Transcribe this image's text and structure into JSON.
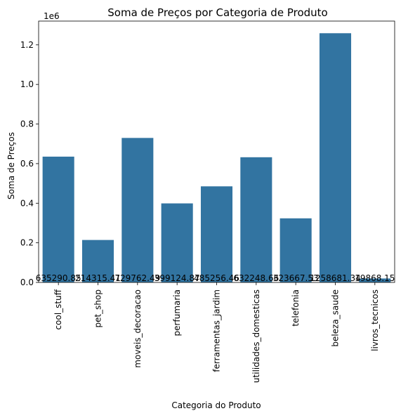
{
  "chart_data": {
    "type": "bar",
    "title": "Soma de Preços por Categoria de Produto",
    "xlabel": "Categoria do Produto",
    "ylabel": "Soma de Preços",
    "y_offset_label": "1e6",
    "categories": [
      "cool_stuff",
      "pet_shop",
      "moveis_decoracao",
      "perfumaria",
      "ferramentas_jardim",
      "utilidades_domesticas",
      "telefonia",
      "beleza_saude",
      "livros_tecnicos"
    ],
    "values": [
      635290.85,
      214315.41,
      729762.49,
      399124.87,
      485256.46,
      632248.66,
      323667.53,
      1258681.34,
      19868.15
    ],
    "value_labels": [
      "635290.85",
      "214315.41",
      "729762.49",
      "399124.87",
      "485256.46",
      "632248.66",
      "323667.53",
      "1258681.34",
      "19868.15"
    ],
    "scale": 1000000,
    "ylim": [
      0,
      1.32
    ],
    "yticks": [
      0.0,
      0.2,
      0.4,
      0.6,
      0.8,
      1.0,
      1.2
    ],
    "ytick_labels": [
      "0.0",
      "0.2",
      "0.4",
      "0.6",
      "0.8",
      "1.0",
      "1.2"
    ],
    "grid": false,
    "legend": "none",
    "bar_color": "#3274a1"
  }
}
